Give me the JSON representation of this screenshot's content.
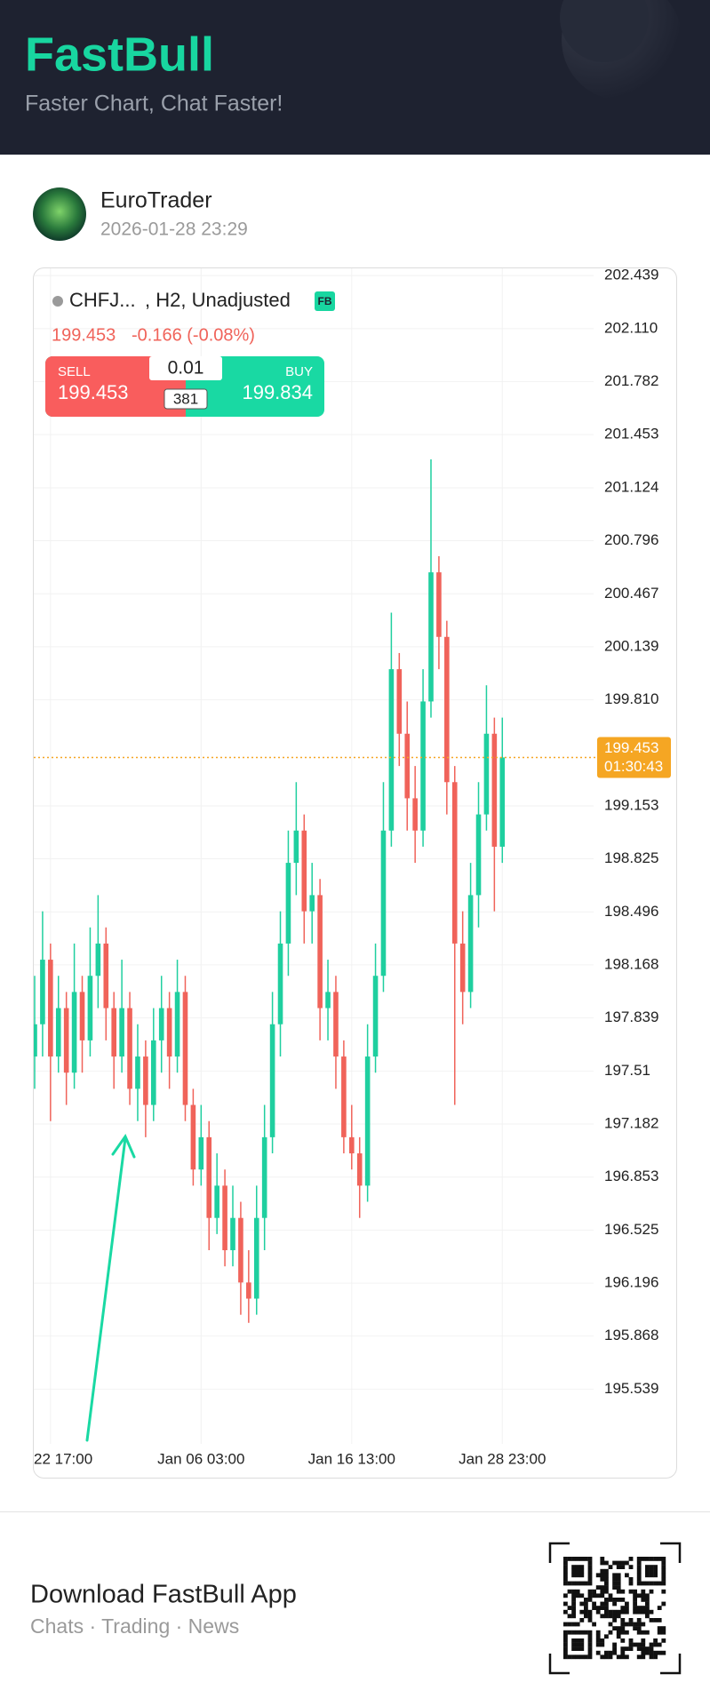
{
  "header": {
    "title": "FastBull",
    "subtitle": "Faster Chart, Chat Faster!"
  },
  "post": {
    "author": "EuroTrader",
    "timestamp": "2026-01-28 23:29"
  },
  "chart_data": {
    "type": "candlestick",
    "symbol": "CHFJ...",
    "symbol_info": ", H2, Unadjusted",
    "badge": "FB",
    "price": 199.453,
    "change": "-0.166 (-0.08%)",
    "trade": {
      "sell_label": "SELL",
      "sell_price": 199.453,
      "lot": 0.01,
      "spread": 381,
      "buy_label": "BUY",
      "buy_price": 199.834
    },
    "last_price": 199.453,
    "countdown": "01:30:43",
    "up_color": "#1fcf9f",
    "down_color": "#f0635a",
    "categories": [
      null,
      null,
      "22 17:00",
      null,
      null,
      null,
      null,
      null,
      null,
      null,
      null,
      null,
      null,
      null,
      null,
      null,
      null,
      null,
      null,
      null,
      null,
      "Jan 06 03:00",
      null,
      null,
      null,
      null,
      null,
      null,
      null,
      null,
      null,
      null,
      null,
      null,
      null,
      null,
      null,
      null,
      null,
      null,
      "Jan 16 13:00",
      null,
      null,
      null,
      null,
      null,
      null,
      null,
      null,
      null,
      null,
      null,
      null,
      null,
      null,
      null,
      null,
      null,
      null,
      "Jan 28 23:00"
    ],
    "open": [
      197.6,
      197.8,
      198.2,
      197.6,
      197.9,
      197.5,
      198.0,
      197.7,
      198.1,
      198.3,
      197.9,
      197.6,
      197.9,
      197.4,
      197.6,
      197.3,
      197.7,
      197.9,
      197.6,
      198.0,
      197.3,
      196.9,
      197.1,
      196.6,
      196.8,
      196.4,
      196.6,
      196.2,
      196.1,
      196.6,
      197.1,
      197.8,
      198.3,
      198.8,
      199.0,
      198.5,
      198.6,
      197.9,
      198.0,
      197.6,
      197.1,
      197.0,
      196.8,
      197.6,
      198.1,
      199.0,
      200.0,
      199.6,
      199.2,
      199.0,
      199.8,
      200.6,
      200.2,
      199.3,
      198.3,
      198.0,
      198.6,
      199.1,
      199.6,
      198.9
    ],
    "high": [
      198.1,
      198.5,
      198.3,
      198.1,
      198.0,
      198.3,
      198.1,
      198.4,
      198.6,
      198.4,
      198.0,
      198.2,
      198.0,
      197.8,
      197.7,
      197.9,
      198.1,
      198.0,
      198.2,
      198.1,
      197.4,
      197.3,
      197.2,
      197.0,
      196.9,
      196.8,
      196.7,
      196.4,
      196.8,
      197.3,
      198.0,
      198.5,
      199.0,
      199.3,
      199.1,
      198.8,
      198.7,
      198.2,
      198.1,
      197.7,
      197.3,
      197.1,
      197.8,
      198.3,
      199.3,
      200.35,
      200.1,
      199.8,
      199.4,
      200.0,
      201.3,
      200.7,
      200.3,
      199.4,
      198.5,
      198.8,
      199.3,
      199.9,
      199.7,
      199.7
    ],
    "low": [
      197.4,
      197.6,
      197.2,
      197.5,
      197.3,
      197.4,
      197.5,
      197.6,
      197.9,
      197.7,
      197.4,
      197.5,
      197.3,
      197.2,
      197.1,
      197.2,
      197.5,
      197.4,
      197.5,
      197.2,
      196.8,
      196.8,
      196.4,
      196.5,
      196.3,
      196.3,
      196.0,
      195.95,
      196.0,
      196.4,
      197.0,
      197.6,
      198.1,
      198.6,
      198.3,
      198.3,
      197.7,
      197.7,
      197.4,
      197.0,
      196.9,
      196.6,
      196.7,
      197.5,
      198.0,
      198.9,
      199.4,
      199.0,
      198.8,
      198.9,
      199.7,
      200.0,
      199.1,
      197.3,
      197.8,
      197.9,
      198.4,
      199.0,
      198.5,
      198.8
    ],
    "close": [
      197.8,
      198.2,
      197.6,
      197.9,
      197.5,
      198.0,
      197.7,
      198.1,
      198.3,
      197.9,
      197.6,
      197.9,
      197.4,
      197.6,
      197.3,
      197.7,
      197.9,
      197.6,
      198.0,
      197.3,
      196.9,
      197.1,
      196.6,
      196.8,
      196.4,
      196.6,
      196.2,
      196.1,
      196.6,
      197.1,
      197.8,
      198.3,
      198.8,
      199.0,
      198.5,
      198.6,
      197.9,
      198.0,
      197.6,
      197.1,
      197.0,
      196.8,
      197.6,
      198.1,
      199.0,
      200.0,
      199.6,
      199.2,
      199.0,
      199.8,
      200.6,
      200.2,
      199.3,
      198.3,
      198.0,
      198.6,
      199.1,
      199.6,
      198.9,
      199.453
    ],
    "ylim": [
      195.2,
      202.5
    ],
    "yticks": [
      202.439,
      {
        "value": 202.11,
        "label": "202.110"
      },
      201.782,
      201.453,
      201.124,
      200.796,
      200.467,
      200.139,
      {
        "value": 199.81,
        "label": "199.810"
      },
      199.153,
      198.825,
      198.496,
      198.168,
      197.839,
      197.51,
      197.182,
      196.853,
      196.525,
      196.196,
      195.868,
      195.539
    ],
    "grid": true
  },
  "footer": {
    "title": "Download FastBull App",
    "subtitle": "Chats · Trading · News"
  }
}
